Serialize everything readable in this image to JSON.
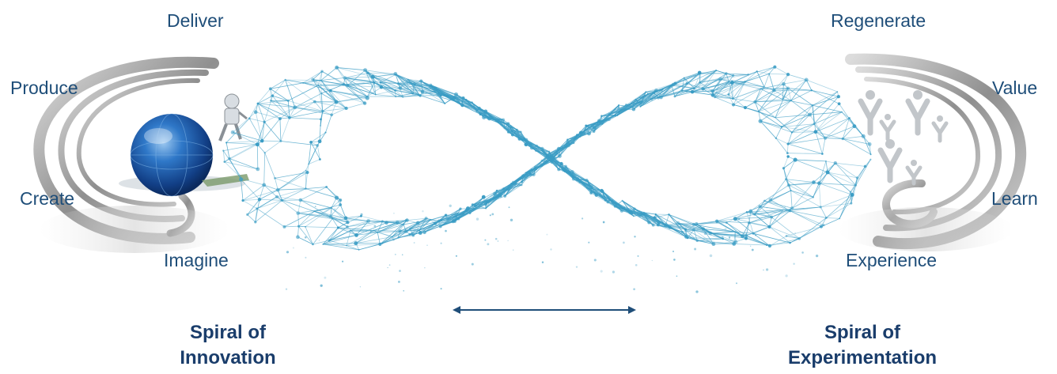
{
  "left_spiral": {
    "stages": {
      "deliver": "Deliver",
      "produce": "Produce",
      "create": "Create",
      "imagine": "Imagine"
    },
    "title_line1": "Spiral of",
    "title_line2": "Innovation"
  },
  "right_spiral": {
    "stages": {
      "regenerate": "Regenerate",
      "value": "Value",
      "learn": "Learn",
      "experience": "Experience"
    },
    "title_line1": "Spiral of",
    "title_line2": "Experimentation"
  },
  "colors": {
    "label_text": "#1f4e79",
    "network": "#3a9cc4",
    "globe": "#1e5aa8",
    "spiral_grey": "#9a9a9a"
  }
}
